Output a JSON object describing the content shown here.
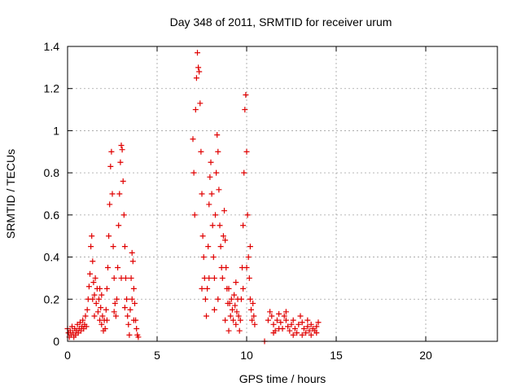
{
  "chart_data": {
    "type": "scatter",
    "title": "Day 348 of 2011, SRMTID for receiver urum",
    "xlabel": "GPS time / hours",
    "ylabel": "SRMTID / TECUs",
    "xlim": [
      0,
      24
    ],
    "ylim": [
      0,
      1.4
    ],
    "grid": true,
    "x_ticks": [
      0,
      5,
      10,
      15,
      20
    ],
    "x_tick_labels": [
      "0",
      "5",
      "10",
      "15",
      "20"
    ],
    "y_ticks": [
      0,
      0.2,
      0.4,
      0.6,
      0.8,
      1.0,
      1.2,
      1.4
    ],
    "y_tick_labels": [
      "0",
      "0.2",
      "0.4",
      "0.6",
      "0.8",
      "1",
      "1.2",
      "1.4"
    ],
    "marker": "+",
    "series": [
      {
        "name": "SRMTID",
        "color": "#e00000",
        "points": [
          [
            0.0,
            0.06
          ],
          [
            0.05,
            0.04
          ],
          [
            0.1,
            0.02
          ],
          [
            0.15,
            0.05
          ],
          [
            0.2,
            0.03
          ],
          [
            0.25,
            0.07
          ],
          [
            0.3,
            0.04
          ],
          [
            0.35,
            0.02
          ],
          [
            0.4,
            0.06
          ],
          [
            0.45,
            0.03
          ],
          [
            0.5,
            0.05
          ],
          [
            0.55,
            0.08
          ],
          [
            0.6,
            0.04
          ],
          [
            0.65,
            0.06
          ],
          [
            0.7,
            0.09
          ],
          [
            0.75,
            0.05
          ],
          [
            0.8,
            0.07
          ],
          [
            0.85,
            0.1
          ],
          [
            0.9,
            0.06
          ],
          [
            0.95,
            0.08
          ],
          [
            1.0,
            0.12
          ],
          [
            1.05,
            0.07
          ],
          [
            1.1,
            0.15
          ],
          [
            1.15,
            0.2
          ],
          [
            1.2,
            0.26
          ],
          [
            1.25,
            0.32
          ],
          [
            1.3,
            0.45
          ],
          [
            1.35,
            0.5
          ],
          [
            1.4,
            0.38
          ],
          [
            1.45,
            0.28
          ],
          [
            1.5,
            0.22
          ],
          [
            1.55,
            0.3
          ],
          [
            1.6,
            0.18
          ],
          [
            1.65,
            0.25
          ],
          [
            1.7,
            0.14
          ],
          [
            1.75,
            0.2
          ],
          [
            1.8,
            0.1
          ],
          [
            1.85,
            0.16
          ],
          [
            1.9,
            0.08
          ],
          [
            1.95,
            0.12
          ],
          [
            2.0,
            0.05
          ],
          [
            2.05,
            0.1
          ],
          [
            2.1,
            0.06
          ],
          [
            2.15,
            0.15
          ],
          [
            2.2,
            0.25
          ],
          [
            2.25,
            0.35
          ],
          [
            2.3,
            0.5
          ],
          [
            2.35,
            0.65
          ],
          [
            2.4,
            0.83
          ],
          [
            2.45,
            0.9
          ],
          [
            2.5,
            0.7
          ],
          [
            2.55,
            0.45
          ],
          [
            2.6,
            0.3
          ],
          [
            2.65,
            0.18
          ],
          [
            2.7,
            0.12
          ],
          [
            2.75,
            0.2
          ],
          [
            2.8,
            0.35
          ],
          [
            2.85,
            0.55
          ],
          [
            2.9,
            0.7
          ],
          [
            2.95,
            0.85
          ],
          [
            3.0,
            0.93
          ],
          [
            3.05,
            0.91
          ],
          [
            3.1,
            0.76
          ],
          [
            3.15,
            0.6
          ],
          [
            3.2,
            0.45
          ],
          [
            3.25,
            0.3
          ],
          [
            3.3,
            0.2
          ],
          [
            3.35,
            0.12
          ],
          [
            3.4,
            0.08
          ],
          [
            3.45,
            0.03
          ],
          [
            3.5,
            0.15
          ],
          [
            3.55,
            0.3
          ],
          [
            3.6,
            0.42
          ],
          [
            3.65,
            0.38
          ],
          [
            3.7,
            0.25
          ],
          [
            3.75,
            0.18
          ],
          [
            3.8,
            0.1
          ],
          [
            3.85,
            0.06
          ],
          [
            3.9,
            0.03
          ],
          [
            3.95,
            0.02
          ],
          [
            1.4,
            0.2
          ],
          [
            1.5,
            0.12
          ],
          [
            1.8,
            0.25
          ],
          [
            2.2,
            0.1
          ],
          [
            2.6,
            0.14
          ],
          [
            3.0,
            0.3
          ],
          [
            3.2,
            0.16
          ],
          [
            3.6,
            0.2
          ],
          [
            3.7,
            0.1
          ],
          [
            1.9,
            0.22
          ],
          [
            7.0,
            0.96
          ],
          [
            7.05,
            0.8
          ],
          [
            7.1,
            0.6
          ],
          [
            7.15,
            1.1
          ],
          [
            7.2,
            1.25
          ],
          [
            7.25,
            1.37
          ],
          [
            7.3,
            1.3
          ],
          [
            7.35,
            1.28
          ],
          [
            7.4,
            1.13
          ],
          [
            7.45,
            0.9
          ],
          [
            7.5,
            0.7
          ],
          [
            7.55,
            0.5
          ],
          [
            7.6,
            0.4
          ],
          [
            7.65,
            0.3
          ],
          [
            7.7,
            0.2
          ],
          [
            7.75,
            0.12
          ],
          [
            7.8,
            0.25
          ],
          [
            7.85,
            0.45
          ],
          [
            7.9,
            0.65
          ],
          [
            7.95,
            0.78
          ],
          [
            8.0,
            0.85
          ],
          [
            8.05,
            0.7
          ],
          [
            8.1,
            0.55
          ],
          [
            8.15,
            0.4
          ],
          [
            8.2,
            0.3
          ],
          [
            8.25,
            0.6
          ],
          [
            8.3,
            0.8
          ],
          [
            8.35,
            0.98
          ],
          [
            8.4,
            0.9
          ],
          [
            8.45,
            0.72
          ],
          [
            8.5,
            0.55
          ],
          [
            8.55,
            0.45
          ],
          [
            8.6,
            0.35
          ],
          [
            8.65,
            0.3
          ],
          [
            8.7,
            0.5
          ],
          [
            8.75,
            0.62
          ],
          [
            8.8,
            0.48
          ],
          [
            8.85,
            0.35
          ],
          [
            8.9,
            0.25
          ],
          [
            8.95,
            0.18
          ],
          [
            9.0,
            0.25
          ],
          [
            9.05,
            0.18
          ],
          [
            9.1,
            0.12
          ],
          [
            9.15,
            0.2
          ],
          [
            9.2,
            0.15
          ],
          [
            9.25,
            0.1
          ],
          [
            9.3,
            0.22
          ],
          [
            9.35,
            0.17
          ],
          [
            9.4,
            0.08
          ],
          [
            9.45,
            0.14
          ],
          [
            9.5,
            0.2
          ],
          [
            9.55,
            0.12
          ],
          [
            9.6,
            0.05
          ],
          [
            9.65,
            0.1
          ],
          [
            9.7,
            0.2
          ],
          [
            9.75,
            0.35
          ],
          [
            9.8,
            0.55
          ],
          [
            9.85,
            0.8
          ],
          [
            9.9,
            1.1
          ],
          [
            9.95,
            1.17
          ],
          [
            10.0,
            0.9
          ],
          [
            10.05,
            0.6
          ],
          [
            10.1,
            0.4
          ],
          [
            10.15,
            0.3
          ],
          [
            10.2,
            0.2
          ],
          [
            10.25,
            0.15
          ],
          [
            10.3,
            0.1
          ],
          [
            10.35,
            0.18
          ],
          [
            10.4,
            0.12
          ],
          [
            10.45,
            0.08
          ],
          [
            7.5,
            0.25
          ],
          [
            7.9,
            0.3
          ],
          [
            8.2,
            0.15
          ],
          [
            8.4,
            0.2
          ],
          [
            8.8,
            0.1
          ],
          [
            9.0,
            0.05
          ],
          [
            9.4,
            0.28
          ],
          [
            9.8,
            0.25
          ],
          [
            10.0,
            0.35
          ],
          [
            10.2,
            0.45
          ],
          [
            11.0,
            0.0
          ],
          [
            11.2,
            0.1
          ],
          [
            11.3,
            0.14
          ],
          [
            11.4,
            0.12
          ],
          [
            11.5,
            0.08
          ],
          [
            11.6,
            0.05
          ],
          [
            11.7,
            0.1
          ],
          [
            11.8,
            0.13
          ],
          [
            11.9,
            0.09
          ],
          [
            12.0,
            0.06
          ],
          [
            12.1,
            0.12
          ],
          [
            12.2,
            0.1
          ],
          [
            12.3,
            0.07
          ],
          [
            12.4,
            0.05
          ],
          [
            12.5,
            0.08
          ],
          [
            12.6,
            0.1
          ],
          [
            12.7,
            0.06
          ],
          [
            12.8,
            0.04
          ],
          [
            12.9,
            0.08
          ],
          [
            13.0,
            0.12
          ],
          [
            13.1,
            0.09
          ],
          [
            13.2,
            0.06
          ],
          [
            13.3,
            0.04
          ],
          [
            13.4,
            0.07
          ],
          [
            13.5,
            0.05
          ],
          [
            13.6,
            0.08
          ],
          [
            13.7,
            0.06
          ],
          [
            13.8,
            0.05
          ],
          [
            13.9,
            0.07
          ],
          [
            14.0,
            0.09
          ],
          [
            11.5,
            0.04
          ],
          [
            11.8,
            0.06
          ],
          [
            12.2,
            0.14
          ],
          [
            12.6,
            0.03
          ],
          [
            13.1,
            0.03
          ],
          [
            13.4,
            0.1
          ],
          [
            13.6,
            0.03
          ],
          [
            13.9,
            0.04
          ]
        ]
      }
    ]
  }
}
